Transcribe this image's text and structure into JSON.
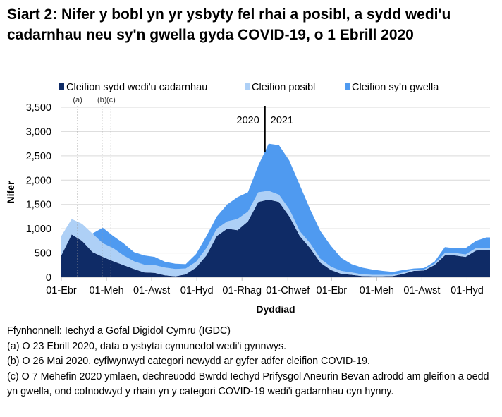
{
  "title": "Siart 2: Nifer y bobl yn yr ysbyty fel rhai a posibl, a sydd wedi'u cadarnhau neu sy'n gwella gyda COVID-19, o 1 Ebrill 2020",
  "chart_data": {
    "type": "area",
    "stacked": true,
    "xlabel": "Dyddiad",
    "ylabel": "Nifer",
    "ylim": [
      0,
      3500
    ],
    "yticks": [
      0,
      500,
      1000,
      1500,
      2000,
      2500,
      3000,
      3500
    ],
    "ytick_labels": [
      "0",
      "500",
      "1,000",
      "1,500",
      "2,000",
      "2,500",
      "3,000",
      "3,500"
    ],
    "xticks": [
      "2020-04-01",
      "2020-06-01",
      "2020-08-01",
      "2020-10-01",
      "2020-12-01",
      "2021-02-01",
      "2021-04-01",
      "2021-06-01",
      "2021-08-01",
      "2021-10-01"
    ],
    "xtick_labels": [
      "01-Ebr",
      "01-Meh",
      "01-Awst",
      "01-Hyd",
      "01-Rhag",
      "01-Chwef",
      "01-Ebr",
      "01-Meh",
      "01-Awst",
      "01-Hyd"
    ],
    "xlim": [
      "2020-04-01",
      "2021-11-01"
    ],
    "grid": "horizontal",
    "legend_position": "top",
    "colors": {
      "confirmed": "#0f2b66",
      "suspected": "#aed0f6",
      "recovering": "#4f9af0"
    },
    "dates": [
      "2020-04-01",
      "2020-04-15",
      "2020-04-29",
      "2020-05-13",
      "2020-05-27",
      "2020-06-10",
      "2020-06-24",
      "2020-07-08",
      "2020-07-22",
      "2020-08-05",
      "2020-08-19",
      "2020-09-02",
      "2020-09-16",
      "2020-09-30",
      "2020-10-14",
      "2020-10-28",
      "2020-11-11",
      "2020-11-25",
      "2020-12-09",
      "2020-12-23",
      "2021-01-06",
      "2021-01-20",
      "2021-02-03",
      "2021-02-17",
      "2021-03-03",
      "2021-03-17",
      "2021-03-31",
      "2021-04-14",
      "2021-04-28",
      "2021-05-12",
      "2021-05-26",
      "2021-06-09",
      "2021-06-23",
      "2021-07-07",
      "2021-07-21",
      "2021-08-04",
      "2021-08-18",
      "2021-09-01",
      "2021-09-15",
      "2021-09-29",
      "2021-10-13",
      "2021-10-27"
    ],
    "series": [
      {
        "name": "Cleifion sydd wedi'u cadarnhau",
        "key": "confirmed",
        "values": [
          450,
          880,
          750,
          520,
          420,
          330,
          250,
          170,
          100,
          90,
          40,
          20,
          60,
          200,
          450,
          850,
          1000,
          970,
          1150,
          1550,
          1600,
          1550,
          1250,
          850,
          600,
          300,
          150,
          70,
          50,
          25,
          20,
          20,
          25,
          70,
          130,
          140,
          250,
          450,
          450,
          420,
          550,
          560
        ]
      },
      {
        "name": "Cleifion posibl",
        "key": "suspected",
        "values": [
          400,
          320,
          350,
          380,
          280,
          270,
          200,
          160,
          160,
          160,
          160,
          150,
          120,
          120,
          150,
          150,
          150,
          230,
          200,
          200,
          180,
          150,
          150,
          100,
          100,
          80,
          70,
          60,
          50,
          35,
          30,
          30,
          25,
          30,
          30,
          20,
          30,
          50,
          50,
          50,
          50,
          50
        ]
      },
      {
        "name": "Cleifion sy’n gwella",
        "key": "recovering",
        "values": [
          0,
          0,
          0,
          0,
          320,
          250,
          250,
          190,
          190,
          170,
          120,
          110,
          90,
          160,
          250,
          250,
          350,
          450,
          400,
          550,
          970,
          1020,
          1000,
          950,
          700,
          570,
          430,
          270,
          170,
          140,
          110,
          80,
          60,
          50,
          20,
          30,
          40,
          120,
          100,
          130,
          150,
          210
        ]
      }
    ],
    "annotations": [
      {
        "label": "(a)",
        "date": "2020-04-23"
      },
      {
        "label": "(b)",
        "date": "2020-05-26"
      },
      {
        "label": "(c)",
        "date": "2020-06-07"
      }
    ],
    "year_divider": {
      "date": "2021-01-01",
      "left_label": "2020",
      "right_label": "2021"
    }
  },
  "notes": [
    "Ffynhonnell: Iechyd a Gofal Digidol Cymru (IGDC)",
    "(a) O 23 Ebrill 2020, data o ysbytai cymunedol wedi'i gynnwys.",
    "(b) O 26 Mai 2020, cyflwynwyd categori newydd ar gyfer adfer cleifion COVID-19.",
    "(c) O 7 Mehefin 2020 ymlaen, dechreuodd Bwrdd Iechyd Prifysgol Aneurin Bevan adrodd am gleifion a oedd yn gwella, ond cofnodwyd y rhain yn y categori COVID-19 wedi'i gadarnhau cyn hynny."
  ]
}
